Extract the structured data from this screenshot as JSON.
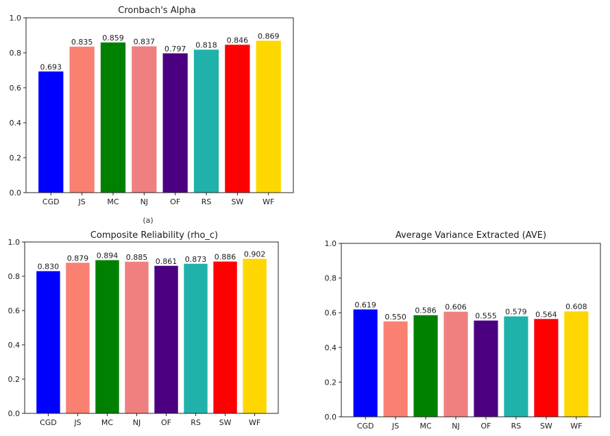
{
  "chart_data": [
    {
      "type": "bar",
      "title": "Cronbach's Alpha",
      "panel_label": "(a)",
      "xlabel": "",
      "ylabel": "",
      "ylim": [
        0,
        1.0
      ],
      "yticks": [
        "0.0",
        "0.2",
        "0.4",
        "0.6",
        "0.8",
        "1.0"
      ],
      "categories": [
        "CGD",
        "JS",
        "MC",
        "NJ",
        "OF",
        "RS",
        "SW",
        "WF"
      ],
      "values": [
        0.693,
        0.835,
        0.859,
        0.837,
        0.797,
        0.818,
        0.846,
        0.869
      ],
      "value_labels": [
        "0.693",
        "0.835",
        "0.859",
        "0.837",
        "0.797",
        "0.818",
        "0.846",
        "0.869"
      ],
      "colors": [
        "#0000ff",
        "#fa8072",
        "#008000",
        "#f08080",
        "#4b0082",
        "#20b2aa",
        "#ff0000",
        "#ffd700"
      ]
    },
    {
      "type": "bar",
      "title": "Composite Reliability (rho_c)",
      "xlabel": "",
      "ylabel": "",
      "ylim": [
        0,
        1.0
      ],
      "yticks": [
        "0.0",
        "0.2",
        "0.4",
        "0.6",
        "0.8",
        "1.0"
      ],
      "categories": [
        "CGD",
        "JS",
        "MC",
        "NJ",
        "OF",
        "RS",
        "SW",
        "WF"
      ],
      "values": [
        0.83,
        0.879,
        0.894,
        0.885,
        0.861,
        0.873,
        0.886,
        0.902
      ],
      "value_labels": [
        "0.830",
        "0.879",
        "0.894",
        "0.885",
        "0.861",
        "0.873",
        "0.886",
        "0.902"
      ],
      "colors": [
        "#0000ff",
        "#fa8072",
        "#008000",
        "#f08080",
        "#4b0082",
        "#20b2aa",
        "#ff0000",
        "#ffd700"
      ]
    },
    {
      "type": "bar",
      "title": "Average Variance Extracted (AVE)",
      "xlabel": "",
      "ylabel": "",
      "ylim": [
        0,
        1.0
      ],
      "yticks": [
        "0.0",
        "0.2",
        "0.4",
        "0.6",
        "0.8",
        "1.0"
      ],
      "categories": [
        "CGD",
        "JS",
        "MC",
        "NJ",
        "OF",
        "RS",
        "SW",
        "WF"
      ],
      "values": [
        0.619,
        0.55,
        0.586,
        0.606,
        0.555,
        0.579,
        0.564,
        0.608
      ],
      "value_labels": [
        "0.619",
        "0.550",
        "0.586",
        "0.606",
        "0.555",
        "0.579",
        "0.564",
        "0.608"
      ],
      "colors": [
        "#0000ff",
        "#fa8072",
        "#008000",
        "#f08080",
        "#4b0082",
        "#20b2aa",
        "#ff0000",
        "#ffd700"
      ]
    }
  ]
}
